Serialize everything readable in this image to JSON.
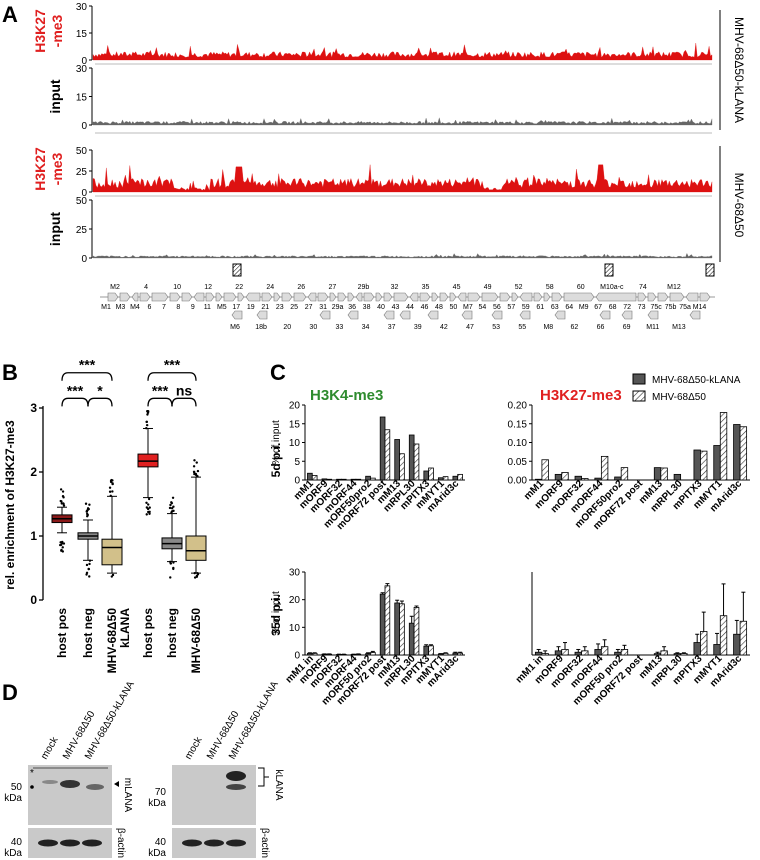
{
  "figure_labels": {
    "A": "A",
    "B": "B",
    "C": "C",
    "D": "D"
  },
  "panel_a": {
    "tracks": [
      {
        "label": [
          "H3K27",
          "-me3"
        ],
        "label_color": "red",
        "ymax": 30,
        "ticks": [
          0,
          15,
          30
        ],
        "color": "#dd1111",
        "level": 0.12
      },
      {
        "label": [
          "input"
        ],
        "label_color": "black",
        "ymax": 30,
        "ticks": [
          0,
          15,
          30
        ],
        "color": "#666666",
        "level": 0.05
      },
      {
        "label": [
          "H3K27",
          "-me3"
        ],
        "label_color": "red",
        "ymax": 50,
        "ticks": [
          0,
          25,
          50
        ],
        "color": "#dd1111",
        "level": 0.25
      },
      {
        "label": [
          "input"
        ],
        "label_color": "black",
        "ymax": 50,
        "ticks": [
          0,
          25,
          50
        ],
        "color": "#666666",
        "level": 0.03
      }
    ],
    "sample_labels": [
      "MHV-68Δ50-kLANA",
      "MHV-68Δ50"
    ],
    "genome_labels_top": [
      "M2",
      "4",
      "10",
      "12",
      "22",
      "24",
      "26",
      "27",
      "29b",
      "32",
      "35",
      "45",
      "49",
      "52",
      "58",
      "60",
      "M10a-c",
      "74",
      "M12"
    ],
    "genome_labels_bottom": [
      "M1",
      "M3",
      "M4",
      "6",
      "7",
      "8",
      "9",
      "11",
      "M5",
      "17",
      "19",
      "21",
      "23",
      "25",
      "27",
      "31",
      "29a",
      "36",
      "38",
      "40",
      "43",
      "44",
      "46",
      "48",
      "50",
      "M7",
      "54",
      "56",
      "57",
      "59",
      "61",
      "63",
      "64",
      "M9",
      "67",
      "68",
      "72",
      "73",
      "75c",
      "75b",
      "75a",
      "M14"
    ],
    "genome_labels_lower": [
      "M6",
      "18b",
      "20",
      "30",
      "33",
      "34",
      "37",
      "39",
      "42",
      "47",
      "53",
      "55",
      "M8",
      "62",
      "66",
      "69",
      "M11",
      "M13"
    ]
  },
  "chart_data": [
    {
      "type": "box",
      "title": "",
      "ylabel": "rel. enrichment of H3K27-me3",
      "ylim": [
        0,
        3
      ],
      "yticks": [
        0,
        1,
        2,
        3
      ],
      "categories": [
        "host pos",
        "host neg",
        "MHV-68Δ50-kLANA",
        "host pos",
        "host neg",
        "MHV-68Δ50"
      ],
      "category_lines": [
        [
          "host pos"
        ],
        [
          "host neg"
        ],
        [
          "MHV-68Δ50",
          "kLANA"
        ],
        [
          "host pos"
        ],
        [
          "host neg"
        ],
        [
          "MHV-68Δ50"
        ]
      ],
      "boxes": [
        {
          "min": 1.05,
          "q1": 1.21,
          "median": 1.27,
          "q3": 1.33,
          "max": 1.45,
          "color": "#8b1a1a"
        },
        {
          "min": 0.62,
          "q1": 0.95,
          "median": 1.0,
          "q3": 1.05,
          "max": 1.25,
          "color": "#888888"
        },
        {
          "min": 0.42,
          "q1": 0.55,
          "median": 0.82,
          "q3": 0.95,
          "max": 1.62,
          "color": "#d2c08a"
        },
        {
          "min": 1.6,
          "q1": 2.08,
          "median": 2.17,
          "q3": 2.28,
          "max": 2.68,
          "color": "#e02020"
        },
        {
          "min": 0.6,
          "q1": 0.8,
          "median": 0.88,
          "q3": 0.97,
          "max": 1.35,
          "color": "#888888"
        },
        {
          "min": 0.42,
          "q1": 0.62,
          "median": 0.77,
          "q3": 1.0,
          "max": 1.92,
          "color": "#d2c08a"
        }
      ],
      "significance": [
        {
          "from": 0,
          "to": 2,
          "label": "***",
          "level": 3.52
        },
        {
          "from": 0,
          "to": 1,
          "label": "***",
          "level": 3.12
        },
        {
          "from": 1,
          "to": 2,
          "label": "*",
          "level": 3.12
        },
        {
          "from": 3,
          "to": 5,
          "label": "***",
          "level": 3.52
        },
        {
          "from": 3,
          "to": 4,
          "label": "***",
          "level": 3.12
        },
        {
          "from": 4,
          "to": 5,
          "label": "ns",
          "level": 3.12
        }
      ]
    },
    {
      "type": "bar",
      "panel": "H3K4-me3 5d p.i.",
      "title": "H3K4-me3",
      "ylabel": "% of input",
      "ylim": [
        0,
        20
      ],
      "yticks": [
        0,
        5,
        10,
        15,
        20
      ],
      "categories": [
        "mM1",
        "mORF9",
        "mORF32",
        "mORF44",
        "mORF50pro2",
        "mORF72 post",
        "mM13",
        "mRPL30",
        "mPITX3",
        "mMYT1",
        "mArid3c"
      ],
      "series": [
        {
          "name": "MHV-68Δ50-kLANA",
          "values": [
            1.8,
            0.3,
            0.2,
            0.2,
            1.0,
            16.8,
            10.8,
            12.0,
            2.4,
            0.6,
            1.0
          ]
        },
        {
          "name": "MHV-68Δ50",
          "values": [
            1.2,
            0.2,
            0.2,
            0.2,
            0.5,
            13.4,
            7.0,
            9.6,
            3.2,
            0.9,
            1.5
          ]
        }
      ]
    },
    {
      "type": "bar",
      "panel": "H3K27-me3 5d p.i.",
      "title": "H3K27-me3",
      "ylabel": "",
      "ylim": [
        0,
        0.2
      ],
      "yticks": [
        0,
        0.05,
        0.1,
        0.15,
        0.2
      ],
      "categories": [
        "mM1",
        "mORF9",
        "mORF32",
        "mORF44",
        "mORF50pro2",
        "mORF72 post",
        "mM13",
        "mRPL30",
        "mPITX3",
        "mMYT1",
        "mArid3c"
      ],
      "series": [
        {
          "name": "MHV-68Δ50-kLANA",
          "values": [
            0.002,
            0.015,
            0.01,
            0.005,
            0.008,
            0.0,
            0.033,
            0.015,
            0.08,
            0.092,
            0.148
          ]
        },
        {
          "name": "MHV-68Δ50",
          "values": [
            0.054,
            0.02,
            0.004,
            0.063,
            0.033,
            0.0,
            0.032,
            0.0,
            0.077,
            0.18,
            0.142
          ]
        }
      ]
    },
    {
      "type": "bar",
      "panel": "H3K4-me3 35d p.i.",
      "ylabel": "% of input",
      "ylim": [
        0,
        30
      ],
      "yticks": [
        0,
        10,
        20,
        30
      ],
      "categories": [
        "mM1 in",
        "mORF9",
        "mORF32",
        "mORF44",
        "mORF50 pro2",
        "mORF72 post",
        "mM13",
        "mRPL30",
        "mPITX3",
        "mMYT1",
        "mArid3c"
      ],
      "series": [
        {
          "name": "MHV-68Δ50-kLANA",
          "values": [
            0.6,
            0.3,
            0.2,
            0.2,
            0.5,
            22.0,
            18.8,
            11.5,
            3.2,
            0.4,
            0.7
          ],
          "errors": [
            0.2,
            0.1,
            0.1,
            0.1,
            0.3,
            0.5,
            1.0,
            2.5,
            0.5,
            0.1,
            0.3
          ]
        },
        {
          "name": "MHV-68Δ50",
          "values": [
            0.6,
            0.3,
            0.2,
            0.3,
            0.9,
            25.0,
            18.5,
            17.2,
            3.3,
            0.6,
            0.7
          ],
          "errors": [
            0.2,
            0.1,
            0.1,
            0.1,
            0.4,
            0.8,
            1.0,
            0.5,
            0.4,
            0.2,
            0.3
          ]
        }
      ]
    },
    {
      "type": "bar",
      "panel": "H3K27-me3 35d p.i.",
      "ylabel": "",
      "ylim": [
        0,
        3
      ],
      "yticks": [],
      "categories": [
        "mM1 in",
        "mORF9",
        "mORF32",
        "mORF44",
        "mORF50 pro2",
        "mORF72 post",
        "mM13",
        "mRPL30",
        "mPITX3",
        "mMYT1",
        "mArid3c"
      ],
      "series": [
        {
          "name": "MHV-68Δ50-kLANA",
          "values": [
            0.1,
            0.15,
            0.1,
            0.2,
            0.1,
            0.0,
            0.05,
            0.05,
            0.45,
            0.38,
            0.75
          ],
          "errors": [
            0.1,
            0.15,
            0.1,
            0.2,
            0.1,
            0.0,
            0.05,
            0.03,
            0.3,
            0.4,
            0.5
          ]
        },
        {
          "name": "MHV-68Δ50",
          "values": [
            0.05,
            0.2,
            0.15,
            0.3,
            0.2,
            0.0,
            0.15,
            0.05,
            0.85,
            1.42,
            1.22
          ],
          "errors": [
            0.1,
            0.25,
            0.15,
            0.25,
            0.15,
            0.0,
            0.15,
            0.03,
            0.7,
            1.15,
            1.05
          ]
        }
      ]
    }
  ],
  "panel_c": {
    "titles": [
      "H3K4-me3",
      "H3K27-me3"
    ],
    "row_labels": [
      "5d p.i.",
      "35d p.i."
    ],
    "legend": [
      {
        "name": "MHV-68Δ50-kLANA",
        "style": "solid"
      },
      {
        "name": "MHV-68Δ50",
        "style": "hatched"
      }
    ]
  },
  "panel_d": {
    "left": {
      "samples": [
        "mock",
        "MHV-68Δ50",
        "MHV-68Δ50-kLANA"
      ],
      "markers": [
        "50",
        "40"
      ],
      "kda": "kDa",
      "labels": [
        "mLANA",
        "β-actin"
      ],
      "star": "*"
    },
    "right": {
      "samples": [
        "mock",
        "MHV-68Δ50",
        "MHV-68Δ50-kLANA"
      ],
      "markers": [
        "70",
        "40"
      ],
      "kda": "kDa",
      "labels": [
        "kLANA",
        "β-actin"
      ]
    }
  },
  "colors": {
    "red": "#dd1111",
    "green": "#2e8b2e",
    "grey": "#666666"
  }
}
